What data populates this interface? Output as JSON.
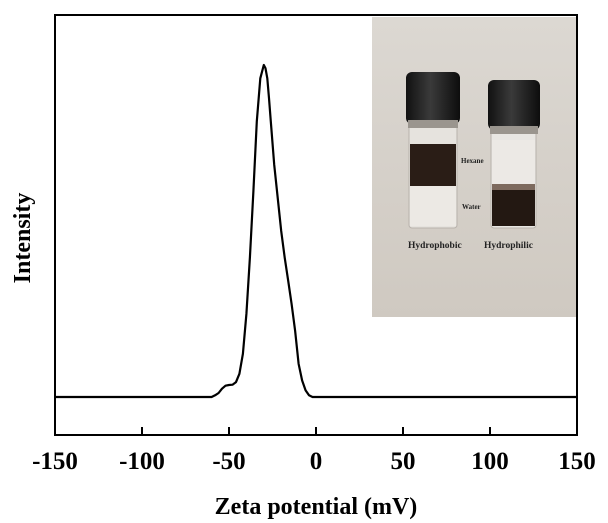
{
  "chart_data": {
    "type": "line",
    "xlabel": "Zeta potential (mV)",
    "ylabel": "Intensity",
    "xlim": [
      -150,
      150
    ],
    "ylim": [
      0,
      1
    ],
    "xticks": [
      "-150",
      "-100",
      "-50",
      "0",
      "50",
      "100",
      "150"
    ],
    "grid": false,
    "series": [
      {
        "x": [
          -150,
          -60,
          -58,
          -56,
          -54,
          -52,
          -50,
          -48,
          -46,
          -44,
          -42,
          -40,
          -38,
          -36,
          -34,
          -32,
          -30,
          -29,
          -28,
          -27,
          -26,
          -24,
          -22,
          -20,
          -18,
          -16,
          -14,
          -12,
          -10,
          -8,
          -6,
          -4,
          -2,
          0,
          150
        ],
        "y": [
          0,
          0,
          0.005,
          0.012,
          0.025,
          0.034,
          0.036,
          0.037,
          0.045,
          0.07,
          0.13,
          0.25,
          0.42,
          0.62,
          0.83,
          0.96,
          1.0,
          0.99,
          0.96,
          0.9,
          0.83,
          0.7,
          0.6,
          0.5,
          0.42,
          0.35,
          0.28,
          0.2,
          0.1,
          0.05,
          0.02,
          0.005,
          0,
          0,
          0
        ]
      }
    ],
    "inset": {
      "labels": {
        "hexane": "Hexane",
        "water": "Water",
        "hydrophobic": "Hydrophobic",
        "hydrophilic": "Hydrophilic"
      }
    }
  }
}
